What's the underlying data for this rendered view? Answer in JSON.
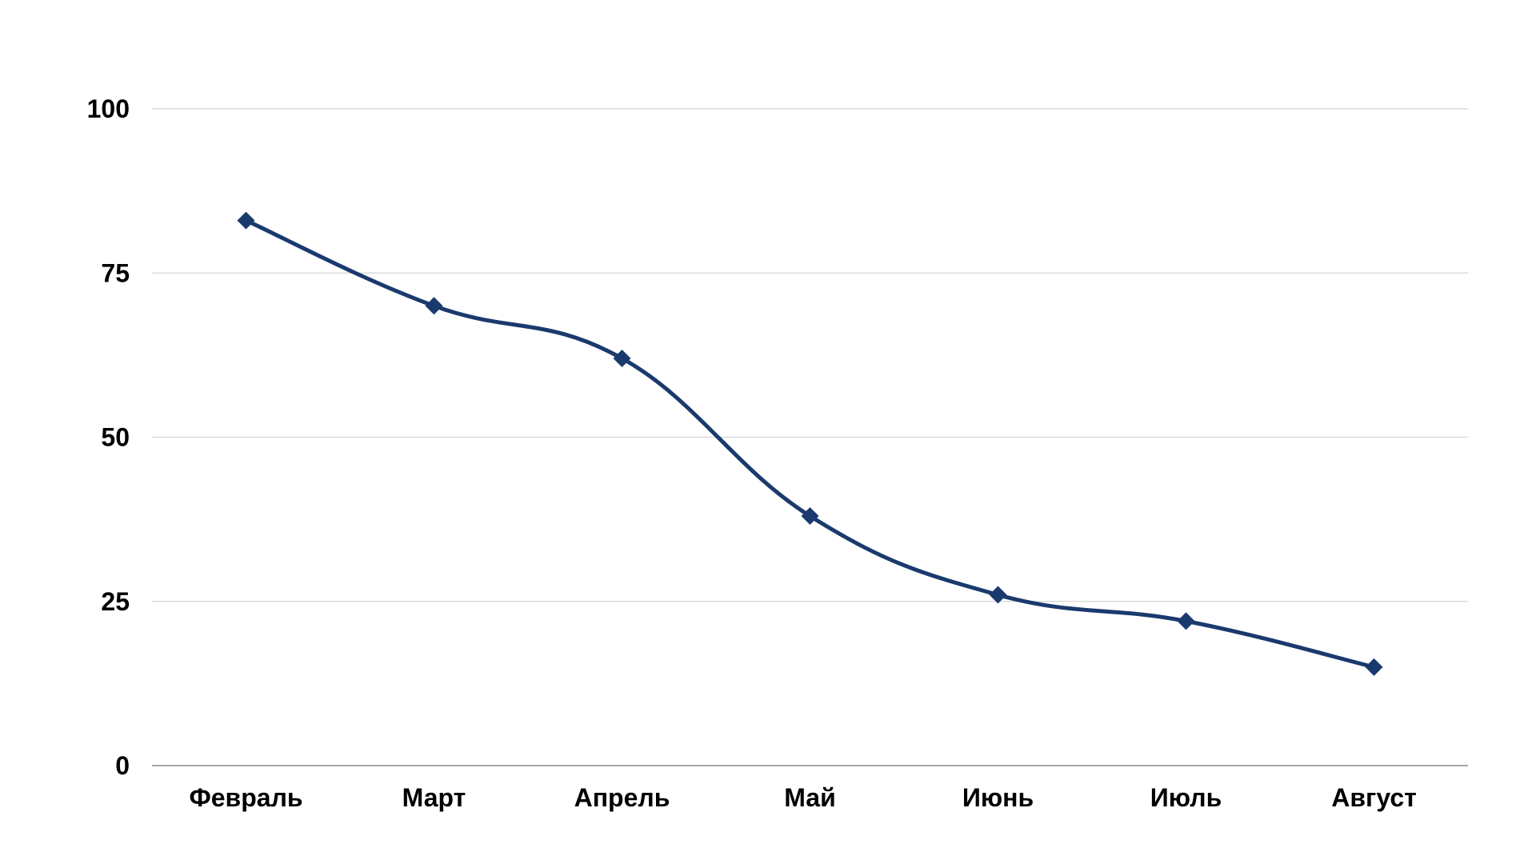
{
  "chart_data": {
    "type": "line",
    "title": "",
    "xlabel": "",
    "ylabel": "",
    "categories": [
      "Февраль",
      "Март",
      "Апрель",
      "Май",
      "Июнь",
      "Июль",
      "Август"
    ],
    "series": [
      {
        "values": [
          83,
          70,
          62,
          38,
          26,
          22,
          15
        ],
        "color": "#1a3a6e",
        "marker": "diamond",
        "smooth": true
      }
    ],
    "ylim": [
      0,
      100
    ],
    "yticks": [
      "0",
      "25",
      "50",
      "75",
      "100"
    ],
    "grid": true,
    "legend": "none",
    "colors": {
      "grid": "#d4d4d4",
      "axis": "#a6a6a6",
      "text": "#000000",
      "background": "#ffffff"
    }
  }
}
